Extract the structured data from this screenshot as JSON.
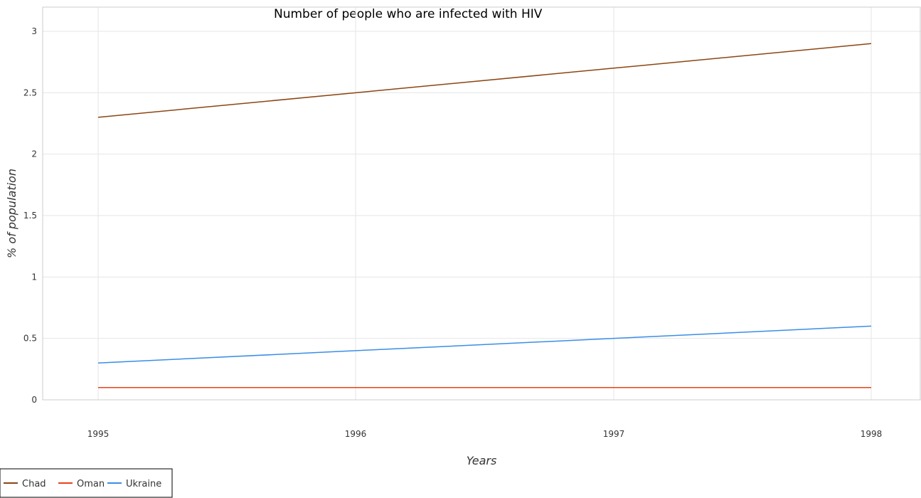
{
  "chart_data": {
    "type": "line",
    "title": "Number of people who are infected with HIV",
    "xlabel": "Years",
    "ylabel": "% of population",
    "categories": [
      "1995",
      "1996",
      "1997",
      "1998"
    ],
    "ylim": [
      0,
      3
    ],
    "yticks": [
      0,
      0.5,
      1,
      1.5,
      2,
      2.5,
      3
    ],
    "ytick_labels": [
      "0",
      "0.5",
      "1",
      "1.5",
      "2",
      "2.5",
      "3"
    ],
    "grid": true,
    "legend_position": "bottom-left",
    "series": [
      {
        "name": "Chad",
        "color": "#8B4513",
        "values": [
          2.3,
          2.5,
          2.7,
          2.9
        ]
      },
      {
        "name": "Oman",
        "color": "#E8421B",
        "values": [
          0.1,
          0.1,
          0.1,
          0.1
        ]
      },
      {
        "name": "Ukraine",
        "color": "#3A8EE6",
        "values": [
          0.3,
          0.4,
          0.5,
          0.6
        ]
      }
    ]
  }
}
